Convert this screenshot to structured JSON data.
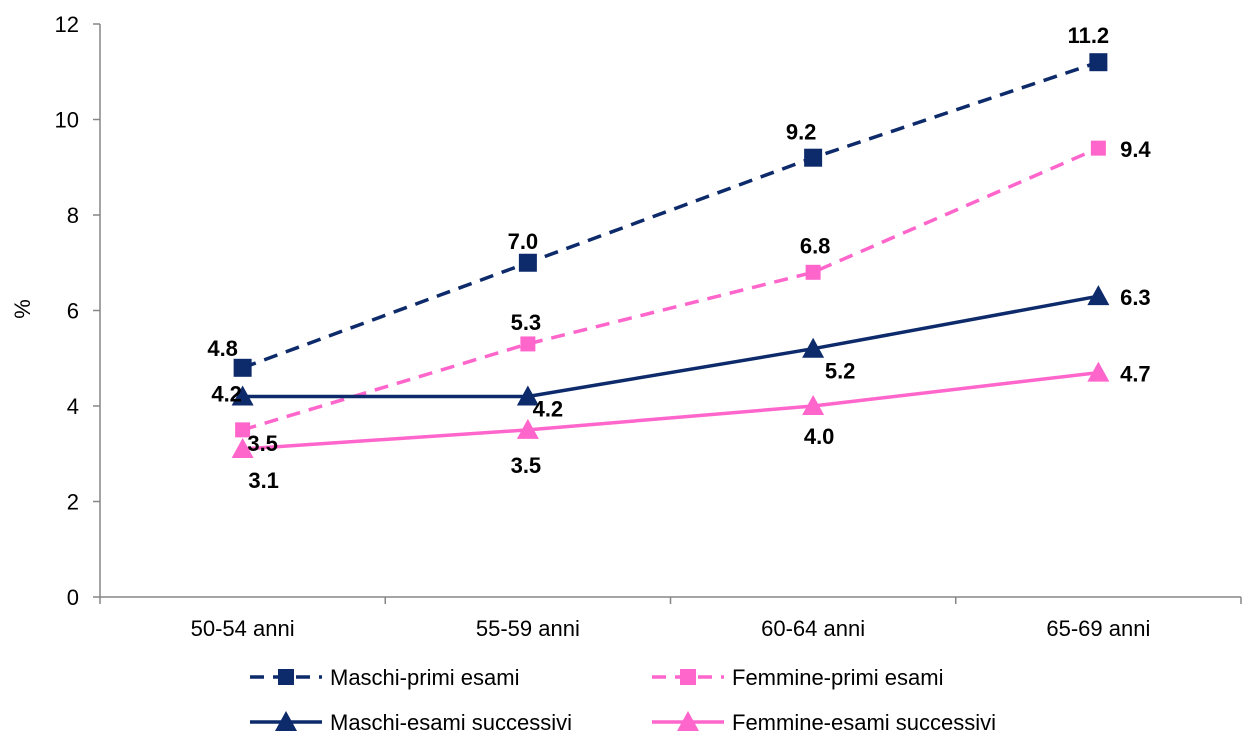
{
  "chart_data": {
    "type": "line",
    "categories": [
      "50-54 anni",
      "55-59 anni",
      "60-64 anni",
      "65-69 anni"
    ],
    "ylabel": "%",
    "xlabel": "",
    "ylim": [
      0,
      12
    ],
    "yticks": [
      "0",
      "2",
      "4",
      "6",
      "8",
      "10",
      "12"
    ],
    "grid": false,
    "legend_position": "bottom",
    "series": [
      {
        "name": "Maschi-primi esami",
        "values": [
          4.8,
          7.0,
          9.2,
          11.2
        ],
        "labels": [
          "4.8",
          "7.0",
          "9.2",
          "11.2"
        ],
        "color": "#0d2a6b",
        "dash": "dashed",
        "marker": "square"
      },
      {
        "name": "Femmine-primi esami",
        "values": [
          3.5,
          5.3,
          6.8,
          9.4
        ],
        "labels": [
          "3.5",
          "5.3",
          "6.8",
          "9.4"
        ],
        "color": "#ff66cc",
        "dash": "dashed",
        "marker": "square"
      },
      {
        "name": "Maschi-esami successivi",
        "values": [
          4.2,
          4.2,
          5.2,
          6.3
        ],
        "labels": [
          "4.2",
          "4.2",
          "5.2",
          "6.3"
        ],
        "color": "#0d2a6b",
        "dash": "solid",
        "marker": "triangle"
      },
      {
        "name": "Femmine-esami successivi",
        "values": [
          3.1,
          3.5,
          4.0,
          4.7
        ],
        "labels": [
          "3.1",
          "3.5",
          "4.0",
          "4.7"
        ],
        "color": "#ff66cc",
        "dash": "solid",
        "marker": "triangle"
      }
    ]
  }
}
